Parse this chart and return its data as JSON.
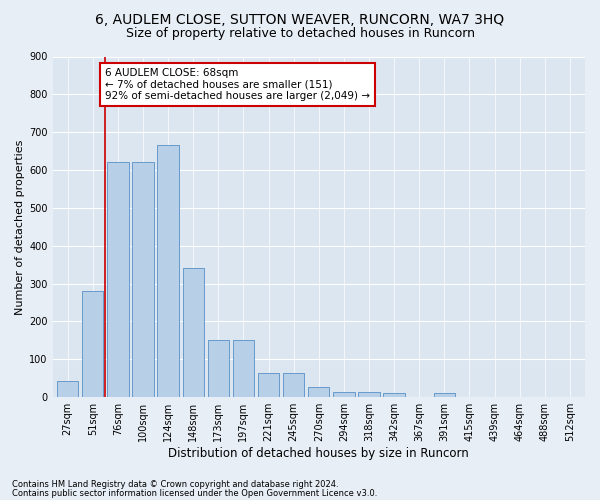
{
  "title1": "6, AUDLEM CLOSE, SUTTON WEAVER, RUNCORN, WA7 3HQ",
  "title2": "Size of property relative to detached houses in Runcorn",
  "xlabel": "Distribution of detached houses by size in Runcorn",
  "ylabel": "Number of detached properties",
  "footnote1": "Contains HM Land Registry data © Crown copyright and database right 2024.",
  "footnote2": "Contains public sector information licensed under the Open Government Licence v3.0.",
  "bar_labels": [
    "27sqm",
    "51sqm",
    "76sqm",
    "100sqm",
    "124sqm",
    "148sqm",
    "173sqm",
    "197sqm",
    "221sqm",
    "245sqm",
    "270sqm",
    "294sqm",
    "318sqm",
    "342sqm",
    "367sqm",
    "391sqm",
    "415sqm",
    "439sqm",
    "464sqm",
    "488sqm",
    "512sqm"
  ],
  "bar_values": [
    42,
    280,
    620,
    620,
    665,
    340,
    150,
    150,
    65,
    65,
    28,
    15,
    15,
    10,
    0,
    10,
    0,
    0,
    0,
    0,
    0
  ],
  "bar_color": "#b8cfe8",
  "bar_edge_color": "#6699cc",
  "red_line_x": 2.0,
  "annotation_text": "6 AUDLEM CLOSE: 68sqm\n← 7% of detached houses are smaller (151)\n92% of semi-detached houses are larger (2,049) →",
  "annotation_box_color": "#ffffff",
  "annotation_box_edge": "#cc0000",
  "red_line_color": "#cc0000",
  "ylim": [
    0,
    900
  ],
  "yticks": [
    0,
    100,
    200,
    300,
    400,
    500,
    600,
    700,
    800,
    900
  ],
  "bg_color": "#e8eef5",
  "plot_bg_color": "#dce6f1",
  "grid_color": "#ffffff",
  "title1_fontsize": 10,
  "title2_fontsize": 9,
  "xlabel_fontsize": 8.5,
  "ylabel_fontsize": 8,
  "tick_fontsize": 7,
  "annot_fontsize": 7.5
}
